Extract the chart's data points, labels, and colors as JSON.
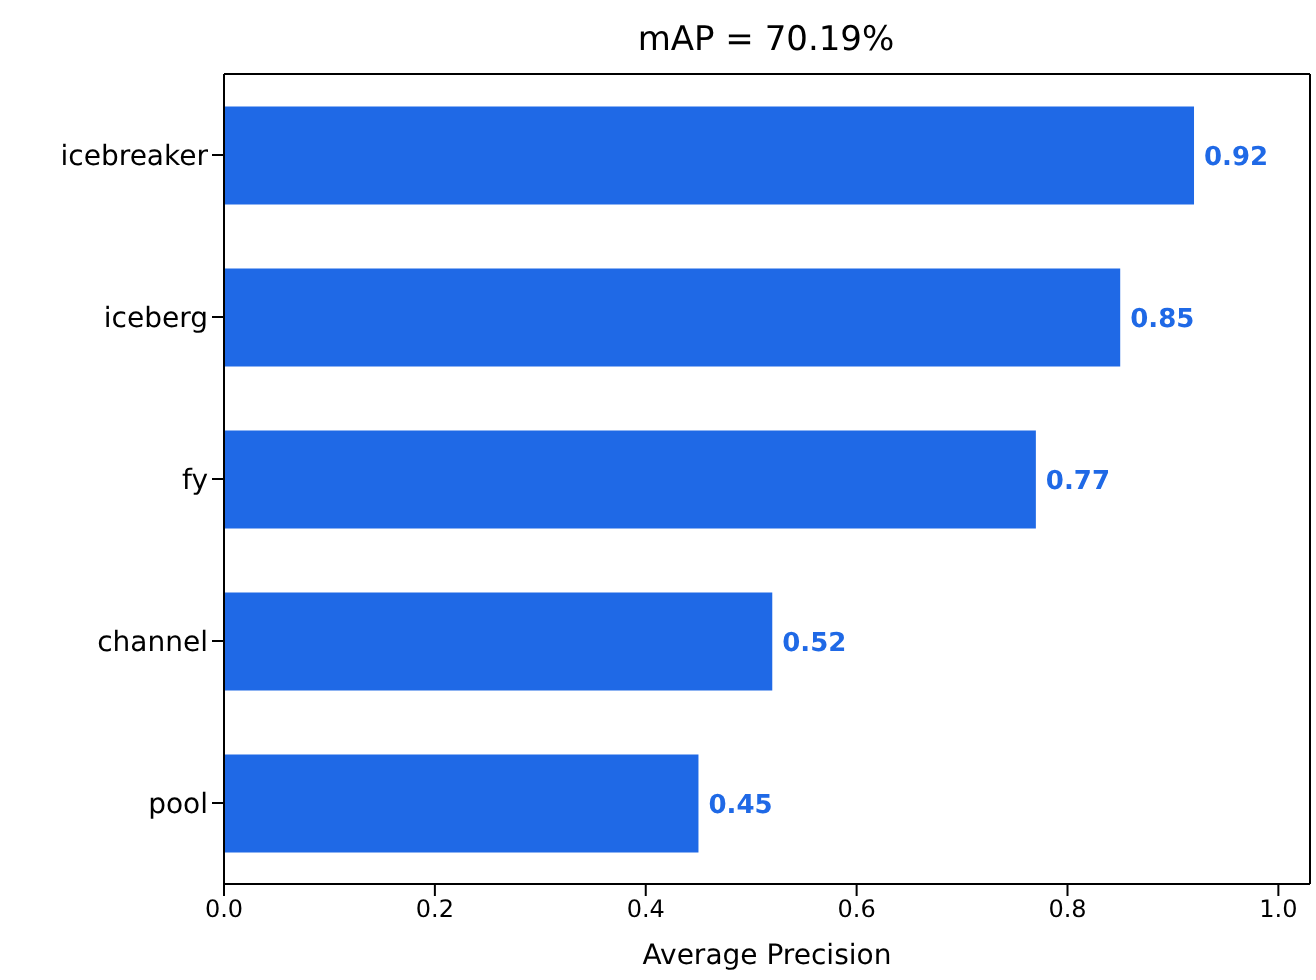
{
  "chart_data": {
    "type": "bar",
    "orientation": "horizontal",
    "title": "mAP = 70.19%",
    "xlabel": "Average Precision",
    "categories": [
      "icebreaker",
      "iceberg",
      "fy",
      "channel",
      "pool"
    ],
    "values": [
      0.92,
      0.85,
      0.77,
      0.52,
      0.45
    ],
    "color": "#1f69e6",
    "xlim": [
      0,
      1.03
    ],
    "xticks": [
      {
        "value": 0,
        "label": "0.0"
      },
      0.2,
      0.4,
      0.6,
      0.8,
      {
        "value": 1,
        "label": "1.0"
      }
    ],
    "data_labels": true,
    "grid": false,
    "legend": false
  }
}
